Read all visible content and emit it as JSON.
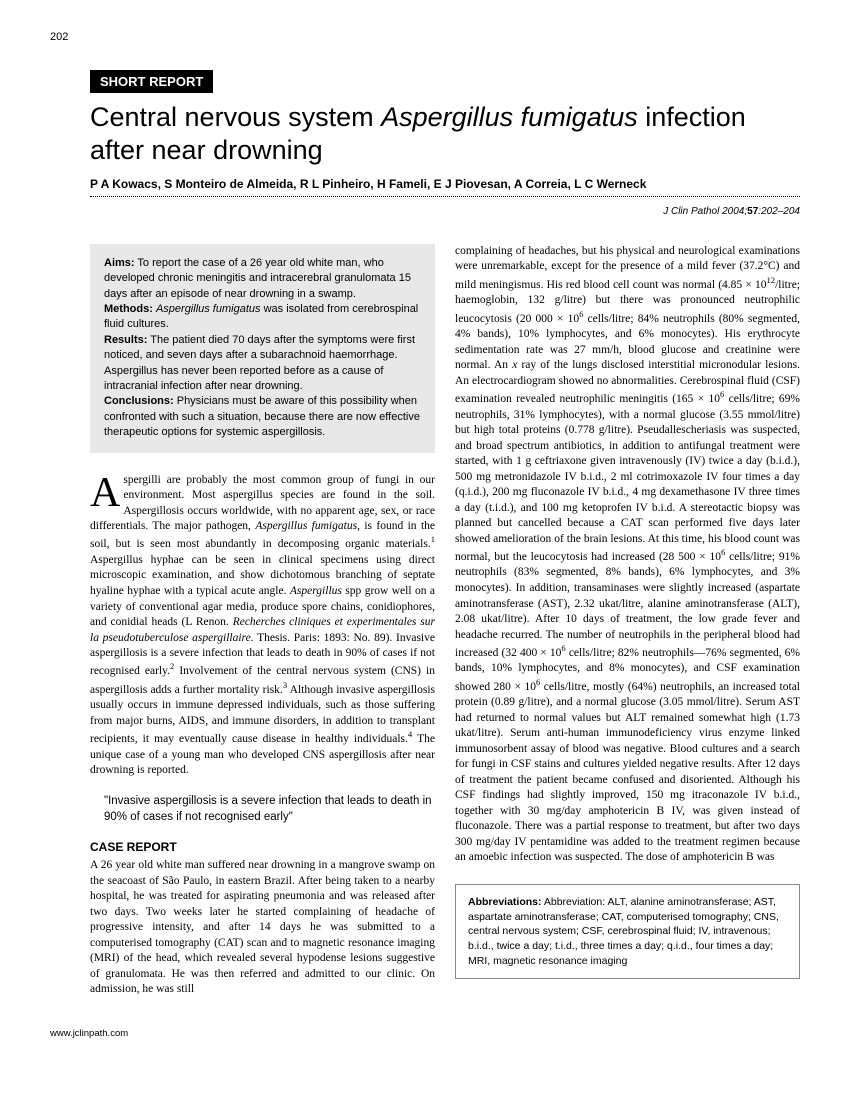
{
  "page_number": "202",
  "section_badge": "SHORT REPORT",
  "title_pre": "Central nervous system ",
  "title_italic": "Aspergillus fumigatus",
  "title_post": " infection after near drowning",
  "authors": "P A Kowacs, S Monteiro de Almeida, R L Pinheiro, H Fameli, E J Piovesan, A Correia, L C Werneck",
  "citation_journal": "J Clin Pathol",
  "citation_year": " 2004;",
  "citation_vol": "57",
  "citation_pages": ":202–204",
  "abstract": {
    "aims_label": "Aims:",
    "aims": " To report the case of a 26 year old white man, who developed chronic meningitis and intracerebral granulomata 15 days after an episode of near drowning in a swamp.",
    "methods_label": "Methods:",
    "methods_pre": " ",
    "methods_italic": "Aspergillus fumigatus",
    "methods_post": " was isolated from cerebrospinal fluid cultures.",
    "results_label": "Results:",
    "results": " The patient died 70 days after the symptoms were first noticed, and seven days after a subarachnoid haemorrhage. Aspergillus has never been reported before as a cause of intracranial infection after near drowning.",
    "conclusions_label": "Conclusions:",
    "conclusions": " Physicians must be aware of this possibility when confronted with such a situation, because there are now effective therapeutic options for systemic aspergillosis."
  },
  "intro_dropcap": "A",
  "intro_text": "spergilli are probably the most common group of fungi in our environment. Most aspergillus species are found in the soil. Aspergillosis occurs worldwide, with no apparent age, sex, or race differentials. The major pathogen, <span class=\"italic\">Aspergillus fumigatus</span>, is found in the soil, but is seen most abundantly in decomposing organic materials.<sup>1</sup> Aspergillus hyphae can be seen in clinical specimens using direct microscopic examination, and show dichotomous branching of septate hyaline hyphae with a typical acute angle. <span class=\"italic\">Aspergillus</span> spp grow well on a variety of conventional agar media, produce spore chains, conidiophores, and conidial heads (L Renon. <span class=\"italic\">Recherches cliniques et experimentales sur la pseudotuberculose aspergillaire</span>. Thesis. Paris: 1893: No. 89). Invasive aspergillosis is a severe infection that leads to death in 90% of cases if not recognised early.<sup>2</sup> Involvement of the central nervous system (CNS) in aspergillosis adds a further mortality risk.<sup>3</sup> Although invasive aspergillosis usually occurs in immune depressed individuals, such as those suffering from major burns, AIDS, and immune disorders, in addition to transplant recipients, it may eventually cause disease in healthy individuals.<sup>4</sup> The unique case of a young man who developed CNS aspergillosis after near drowning is reported.",
  "pullquote": "\"Invasive aspergillosis is a severe infection that leads to death in 90% of cases if not recognised early\"",
  "case_heading": "CASE REPORT",
  "case_col1": "A 26 year old white man suffered near drowning in a mangrove swamp on the seacoast of São Paulo, in eastern Brazil. After being taken to a nearby hospital, he was treated for aspirating pneumonia and was released after two days. Two weeks later he started complaining of headache of progressive intensity, and after 14 days he was submitted to a computerised tomography (CAT) scan and to magnetic resonance imaging (MRI) of the head, which revealed several hypodense lesions suggestive of granulomata. He was then referred and admitted to our clinic. On admission, he was still",
  "case_col2": "complaining of headaches, but his physical and neurological examinations were unremarkable, except for the presence of a mild fever (37.2°C) and mild meningismus. His red blood cell count was normal (4.85 × 10<sup>12</sup>/litre; haemoglobin, 132 g/litre) but there was pronounced neutrophilic leucocytosis (20 000 × 10<sup>6</sup> cells/litre; 84% neutrophils (80% segmented, 4% bands), 10% lymphocytes, and 6% monocytes). His erythrocyte sedimentation rate was 27 mm/h, blood glucose and creatinine were normal. An <span class=\"italic\">x</span> ray of the lungs disclosed interstitial micronodular lesions. An electrocardiogram showed no abnormalities. Cerebrospinal fluid (CSF) examination revealed neutrophilic meningitis (165 × 10<sup>6</sup> cells/litre; 69% neutrophils, 31% lymphocytes), with a normal glucose (3.55 mmol/litre) but high total proteins (0.778 g/litre). Pseudallescheriasis was suspected, and broad spectrum antibiotics, in addition to antifungal treatment were started, with 1 g ceftriaxone given intravenously (IV) twice a day (b.i.d.), 500 mg metronidazole IV b.i.d., 2 ml cotrimoxazole IV four times a day (q.i.d.), 200 mg fluconazole IV b.i.d., 4 mg dexamethasone IV three times a day (t.i.d.), and 100 mg ketoprofen IV b.i.d. A stereotactic biopsy was planned but cancelled because a CAT scan performed five days later showed amelioration of the brain lesions. At this time, his blood count was normal, but the leucocytosis had increased (28 500 × 10<sup>6</sup> cells/litre; 91% neutrophils (83% segmented, 8% bands), 6% lymphocytes, and 3% monocytes). In addition, transaminases were slightly increased (aspartate aminotransferase (AST), 2.32 ukat/litre, alanine aminotransferase (ALT), 2.08 ukat/litre). After 10 days of treatment, the low grade fever and headache recurred. The number of neutrophils in the peripheral blood had increased (32 400 × 10<sup>6</sup> cells/litre; 82% neutrophils—76% segmented, 6% bands, 10% lymphocytes, and 8% monocytes), and CSF examination showed 280 × 10<sup>6</sup> cells/litre, mostly (64%) neutrophils, an increased total protein (0.89 g/litre), and a normal glucose (3.05 mmol/litre). Serum AST had returned to normal values but ALT remained somewhat high (1.73 ukat/litre). Serum anti-human immunodeficiency virus enzyme linked immunosorbent assay of blood was negative. Blood cultures and a search for fungi in CSF stains and cultures yielded negative results. After 12 days of treatment the patient became confused and disoriented. Although his CSF findings had slightly improved, 150 mg itraconazole IV b.i.d., together with 30 mg/day amphotericin B IV, was given instead of fluconazole. There was a partial response to treatment, but after two days 300 mg/day IV pentamidine was added to the treatment regimen because an amoebic infection was suspected. The dose of amphotericin B was",
  "abbrev_label": "Abbreviations:",
  "abbrev_text": " Abbreviation: ALT, alanine aminotransferase; AST, aspartate aminotransferase; CAT, computerised tomography; CNS, central nervous system; CSF, cerebrospinal fluid; IV, intravenous; b.i.d., twice a day; t.i.d., three times a day; q.i.d., four times a day; MRI, magnetic resonance imaging",
  "footer_url": "www.jclinpath.com"
}
